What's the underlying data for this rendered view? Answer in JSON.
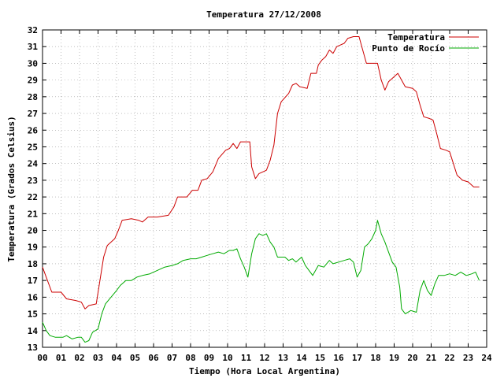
{
  "chart_data": {
    "type": "line",
    "title": "Temperatura 27/12/2008",
    "xlabel": "Tiempo (Hora Local Argentina)",
    "ylabel": "Temperatura (Grados Celsius)",
    "xlim": [
      0,
      24
    ],
    "ylim": [
      13,
      32
    ],
    "x_ticks": [
      "00",
      "01",
      "02",
      "03",
      "04",
      "05",
      "06",
      "07",
      "08",
      "09",
      "10",
      "11",
      "12",
      "13",
      "14",
      "15",
      "16",
      "17",
      "18",
      "19",
      "20",
      "21",
      "22",
      "23",
      "24"
    ],
    "y_ticks": [
      "13",
      "14",
      "15",
      "16",
      "17",
      "18",
      "19",
      "20",
      "21",
      "22",
      "23",
      "24",
      "25",
      "26",
      "27",
      "28",
      "29",
      "30",
      "31",
      "32"
    ],
    "grid": true,
    "legend_position": "top-right",
    "series": [
      {
        "name": "Temperatura",
        "color": "#cc0000",
        "points": [
          [
            0,
            17.8
          ],
          [
            0.2,
            17.2
          ],
          [
            0.5,
            16.3
          ],
          [
            1.0,
            16.3
          ],
          [
            1.3,
            15.9
          ],
          [
            1.8,
            15.8
          ],
          [
            2.1,
            15.7
          ],
          [
            2.3,
            15.3
          ],
          [
            2.5,
            15.5
          ],
          [
            2.9,
            15.6
          ],
          [
            3.1,
            17.0
          ],
          [
            3.3,
            18.4
          ],
          [
            3.5,
            19.1
          ],
          [
            3.9,
            19.5
          ],
          [
            4.1,
            20.0
          ],
          [
            4.3,
            20.6
          ],
          [
            4.8,
            20.7
          ],
          [
            5.2,
            20.6
          ],
          [
            5.4,
            20.5
          ],
          [
            5.7,
            20.8
          ],
          [
            6.2,
            20.8
          ],
          [
            6.8,
            20.9
          ],
          [
            7.1,
            21.4
          ],
          [
            7.3,
            22.0
          ],
          [
            7.8,
            22.0
          ],
          [
            8.1,
            22.4
          ],
          [
            8.4,
            22.4
          ],
          [
            8.6,
            23.0
          ],
          [
            8.9,
            23.1
          ],
          [
            9.2,
            23.5
          ],
          [
            9.5,
            24.3
          ],
          [
            9.9,
            24.8
          ],
          [
            10.1,
            24.9
          ],
          [
            10.3,
            25.2
          ],
          [
            10.5,
            24.9
          ],
          [
            10.7,
            25.3
          ],
          [
            11.2,
            25.3
          ],
          [
            11.3,
            23.8
          ],
          [
            11.5,
            23.1
          ],
          [
            11.7,
            23.4
          ],
          [
            12.1,
            23.6
          ],
          [
            12.3,
            24.2
          ],
          [
            12.5,
            25.1
          ],
          [
            12.7,
            27.0
          ],
          [
            12.9,
            27.7
          ],
          [
            13.3,
            28.2
          ],
          [
            13.5,
            28.7
          ],
          [
            13.7,
            28.8
          ],
          [
            13.9,
            28.6
          ],
          [
            14.3,
            28.5
          ],
          [
            14.5,
            29.4
          ],
          [
            14.8,
            29.4
          ],
          [
            14.9,
            29.9
          ],
          [
            15.1,
            30.2
          ],
          [
            15.3,
            30.4
          ],
          [
            15.5,
            30.8
          ],
          [
            15.7,
            30.6
          ],
          [
            15.9,
            31.0
          ],
          [
            16.1,
            31.1
          ],
          [
            16.3,
            31.2
          ],
          [
            16.5,
            31.5
          ],
          [
            16.8,
            31.6
          ],
          [
            17.1,
            31.6
          ],
          [
            17.3,
            30.8
          ],
          [
            17.5,
            30.0
          ],
          [
            17.8,
            30.0
          ],
          [
            18.1,
            30.0
          ],
          [
            18.3,
            29.0
          ],
          [
            18.5,
            28.4
          ],
          [
            18.7,
            28.9
          ],
          [
            19.0,
            29.2
          ],
          [
            19.2,
            29.4
          ],
          [
            19.4,
            29.0
          ],
          [
            19.6,
            28.6
          ],
          [
            20.0,
            28.5
          ],
          [
            20.2,
            28.3
          ],
          [
            20.4,
            27.5
          ],
          [
            20.6,
            26.8
          ],
          [
            20.9,
            26.7
          ],
          [
            21.1,
            26.6
          ],
          [
            21.3,
            25.8
          ],
          [
            21.5,
            24.9
          ],
          [
            21.8,
            24.8
          ],
          [
            22.0,
            24.7
          ],
          [
            22.2,
            24.0
          ],
          [
            22.4,
            23.3
          ],
          [
            22.7,
            23.0
          ],
          [
            23.0,
            22.9
          ],
          [
            23.3,
            22.6
          ],
          [
            23.6,
            22.6
          ]
        ]
      },
      {
        "name": "Punto de Rocío",
        "color": "#00aa00",
        "points": [
          [
            0,
            14.5
          ],
          [
            0.2,
            14.0
          ],
          [
            0.4,
            13.7
          ],
          [
            0.7,
            13.6
          ],
          [
            1.1,
            13.6
          ],
          [
            1.3,
            13.7
          ],
          [
            1.6,
            13.5
          ],
          [
            1.9,
            13.6
          ],
          [
            2.1,
            13.6
          ],
          [
            2.3,
            13.3
          ],
          [
            2.5,
            13.4
          ],
          [
            2.7,
            13.9
          ],
          [
            3.0,
            14.1
          ],
          [
            3.2,
            15.0
          ],
          [
            3.4,
            15.6
          ],
          [
            3.7,
            16.0
          ],
          [
            4.0,
            16.4
          ],
          [
            4.2,
            16.7
          ],
          [
            4.5,
            17.0
          ],
          [
            4.8,
            17.0
          ],
          [
            5.1,
            17.2
          ],
          [
            5.4,
            17.3
          ],
          [
            5.8,
            17.4
          ],
          [
            6.2,
            17.6
          ],
          [
            6.6,
            17.8
          ],
          [
            7.0,
            17.9
          ],
          [
            7.3,
            18.0
          ],
          [
            7.6,
            18.2
          ],
          [
            8.0,
            18.3
          ],
          [
            8.3,
            18.3
          ],
          [
            8.6,
            18.4
          ],
          [
            8.9,
            18.5
          ],
          [
            9.2,
            18.6
          ],
          [
            9.5,
            18.7
          ],
          [
            9.8,
            18.6
          ],
          [
            10.1,
            18.8
          ],
          [
            10.3,
            18.8
          ],
          [
            10.5,
            18.9
          ],
          [
            10.7,
            18.3
          ],
          [
            10.9,
            17.8
          ],
          [
            11.1,
            17.2
          ],
          [
            11.3,
            18.6
          ],
          [
            11.5,
            19.5
          ],
          [
            11.7,
            19.8
          ],
          [
            11.9,
            19.7
          ],
          [
            12.1,
            19.8
          ],
          [
            12.3,
            19.3
          ],
          [
            12.5,
            19.0
          ],
          [
            12.7,
            18.4
          ],
          [
            13.1,
            18.4
          ],
          [
            13.3,
            18.2
          ],
          [
            13.5,
            18.3
          ],
          [
            13.7,
            18.1
          ],
          [
            14.0,
            18.4
          ],
          [
            14.2,
            17.9
          ],
          [
            14.4,
            17.6
          ],
          [
            14.6,
            17.3
          ],
          [
            14.9,
            17.9
          ],
          [
            15.2,
            17.8
          ],
          [
            15.5,
            18.2
          ],
          [
            15.7,
            18.0
          ],
          [
            16.0,
            18.1
          ],
          [
            16.3,
            18.2
          ],
          [
            16.6,
            18.3
          ],
          [
            16.8,
            18.1
          ],
          [
            17.0,
            17.2
          ],
          [
            17.2,
            17.6
          ],
          [
            17.4,
            19.0
          ],
          [
            17.6,
            19.2
          ],
          [
            17.8,
            19.5
          ],
          [
            18.0,
            20.0
          ],
          [
            18.1,
            20.6
          ],
          [
            18.3,
            19.8
          ],
          [
            18.5,
            19.3
          ],
          [
            18.7,
            18.7
          ],
          [
            18.9,
            18.1
          ],
          [
            19.1,
            17.8
          ],
          [
            19.3,
            16.6
          ],
          [
            19.4,
            15.3
          ],
          [
            19.6,
            15.0
          ],
          [
            19.9,
            15.2
          ],
          [
            20.2,
            15.1
          ],
          [
            20.4,
            16.4
          ],
          [
            20.6,
            17.0
          ],
          [
            20.8,
            16.4
          ],
          [
            21.0,
            16.1
          ],
          [
            21.2,
            16.8
          ],
          [
            21.4,
            17.3
          ],
          [
            21.7,
            17.3
          ],
          [
            22.0,
            17.4
          ],
          [
            22.3,
            17.3
          ],
          [
            22.6,
            17.5
          ],
          [
            22.9,
            17.3
          ],
          [
            23.2,
            17.4
          ],
          [
            23.4,
            17.5
          ],
          [
            23.6,
            17.0
          ]
        ]
      }
    ]
  }
}
